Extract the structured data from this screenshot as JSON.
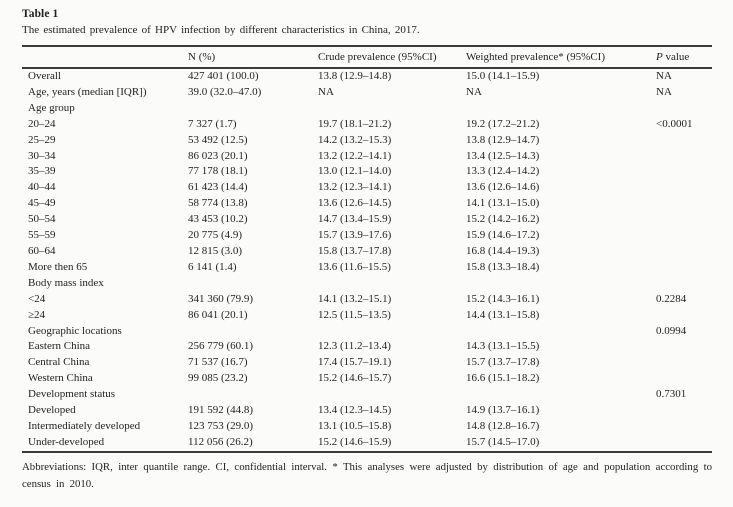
{
  "title": "Table 1",
  "caption": "The estimated prevalence of HPV infection by different characteristics in China, 2017.",
  "table": {
    "headers": [
      "",
      "N (%)",
      "Crude prevalence (95%CI)",
      "Weighted prevalence* (95%CI)"
    ],
    "p_header": {
      "symbol": "P",
      "rest": "value"
    },
    "rows": [
      {
        "label": "Overall",
        "n": "427 401 (100.0)",
        "crude": "13.8 (12.9–14.8)",
        "weighted": "15.0 (14.1–15.9)",
        "p": "NA"
      },
      {
        "label": "Age, years (median [IQR])",
        "n": "39.0 (32.0–47.0)",
        "crude": "NA",
        "weighted": "NA",
        "p": "NA"
      },
      {
        "label": "Age group",
        "n": "",
        "crude": "",
        "weighted": "",
        "p": ""
      },
      {
        "label": "20–24",
        "n": "7 327 (1.7)",
        "crude": "19.7 (18.1–21.2)",
        "weighted": "19.2 (17.2–21.2)",
        "p": "<0.0001"
      },
      {
        "label": "25–29",
        "n": "53 492 (12.5)",
        "crude": "14.2 (13.2–15.3)",
        "weighted": "13.8 (12.9–14.7)",
        "p": ""
      },
      {
        "label": "30–34",
        "n": "86 023 (20.1)",
        "crude": "13.2 (12.2–14.1)",
        "weighted": "13.4 (12.5–14.3)",
        "p": ""
      },
      {
        "label": "35–39",
        "n": "77 178 (18.1)",
        "crude": "13.0 (12.1–14.0)",
        "weighted": "13.3 (12.4–14.2)",
        "p": ""
      },
      {
        "label": "40–44",
        "n": "61 423 (14.4)",
        "crude": "13.2 (12.3–14.1)",
        "weighted": "13.6 (12.6–14.6)",
        "p": ""
      },
      {
        "label": "45–49",
        "n": "58 774 (13.8)",
        "crude": "13.6 (12.6–14.5)",
        "weighted": "14.1 (13.1–15.0)",
        "p": ""
      },
      {
        "label": "50–54",
        "n": "43 453 (10.2)",
        "crude": "14.7 (13.4–15.9)",
        "weighted": "15.2 (14.2–16.2)",
        "p": ""
      },
      {
        "label": "55–59",
        "n": "20 775 (4.9)",
        "crude": "15.7 (13.9–17.6)",
        "weighted": "15.9 (14.6–17.2)",
        "p": ""
      },
      {
        "label": "60–64",
        "n": "12 815 (3.0)",
        "crude": "15.8 (13.7–17.8)",
        "weighted": "16.8 (14.4–19.3)",
        "p": ""
      },
      {
        "label": "More then 65",
        "n": "6 141 (1.4)",
        "crude": "13.6 (11.6–15.5)",
        "weighted": "15.8 (13.3–18.4)",
        "p": ""
      },
      {
        "label": "Body mass index",
        "n": "",
        "crude": "",
        "weighted": "",
        "p": ""
      },
      {
        "label": "<24",
        "n": "341 360 (79.9)",
        "crude": "14.1 (13.2–15.1)",
        "weighted": "15.2 (14.3–16.1)",
        "p": "0.2284"
      },
      {
        "label": "≥24",
        "n": "86 041 (20.1)",
        "crude": "12.5 (11.5–13.5)",
        "weighted": "14.4 (13.1–15.8)",
        "p": ""
      },
      {
        "label": "Geographic locations",
        "n": "",
        "crude": "",
        "weighted": "",
        "p": "0.0994"
      },
      {
        "label": "Eastern China",
        "n": "256 779 (60.1)",
        "crude": "12.3 (11.2–13.4)",
        "weighted": "14.3 (13.1–15.5)",
        "p": ""
      },
      {
        "label": "Central China",
        "n": "71 537 (16.7)",
        "crude": "17.4 (15.7–19.1)",
        "weighted": "15.7 (13.7–17.8)",
        "p": ""
      },
      {
        "label": "Western China",
        "n": "99 085 (23.2)",
        "crude": "15.2 (14.6–15.7)",
        "weighted": "16.6 (15.1–18.2)",
        "p": ""
      },
      {
        "label": "Development status",
        "n": "",
        "crude": "",
        "weighted": "",
        "p": "0.7301"
      },
      {
        "label": "Developed",
        "n": "191 592 (44.8)",
        "crude": "13.4 (12.3–14.5)",
        "weighted": "14.9 (13.7–16.1)",
        "p": ""
      },
      {
        "label": "Intermediately developed",
        "n": "123 753 (29.0)",
        "crude": "13.1 (10.5–15.8)",
        "weighted": "14.8 (12.8–16.7)",
        "p": ""
      },
      {
        "label": "Under-developed",
        "n": "112 056 (26.2)",
        "crude": "15.2 (14.6–15.9)",
        "weighted": "15.7 (14.5–17.0)",
        "p": ""
      }
    ]
  },
  "footnote": "Abbreviations: IQR, inter quantile range. CI, confidential interval. * This analyses were adjusted by distribution of age and population according to census in 2010."
}
